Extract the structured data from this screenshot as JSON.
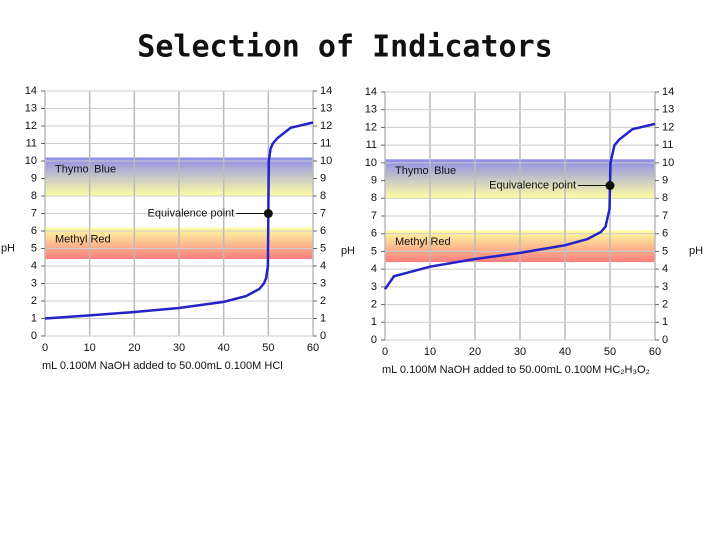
{
  "title": "Selection of Indicators",
  "chart_data": [
    {
      "type": "line",
      "color": "#2323c8",
      "x": [
        0,
        10,
        20,
        30,
        40,
        45,
        48,
        49,
        49.5,
        49.9,
        50,
        50.1,
        50.5,
        51,
        52,
        55,
        60
      ],
      "values": [
        1.0,
        1.18,
        1.37,
        1.6,
        1.95,
        2.28,
        2.69,
        3.0,
        3.3,
        4.0,
        7.0,
        10.0,
        10.7,
        11.0,
        11.3,
        11.9,
        12.2
      ],
      "xlim": [
        0,
        60
      ],
      "ylim": [
        0,
        14
      ],
      "xticks": [
        0,
        10,
        20,
        30,
        40,
        50,
        60
      ],
      "yticks": [
        0,
        1,
        2,
        3,
        4,
        5,
        6,
        7,
        8,
        9,
        10,
        11,
        12,
        13,
        14
      ],
      "ylabel": "pH",
      "xlabel": "mL 0.100M NaOH added to 50.00mL 0.100M HCl",
      "bands": [
        {
          "name": "Thymol Blue",
          "range": [
            8,
            10.2
          ],
          "colors": [
            "#ffff99",
            "#7f80e6"
          ]
        },
        {
          "name": "Methyl Red",
          "range": [
            4.4,
            6.2
          ],
          "colors": [
            "#f86f6f",
            "#ffff99"
          ]
        }
      ],
      "annotation": {
        "label": "Equivalence point",
        "x": 50,
        "y": 7
      },
      "grid": true
    },
    {
      "type": "line",
      "color": "#2323c8",
      "x": [
        0,
        2,
        5,
        10,
        20,
        25,
        30,
        40,
        45,
        48,
        49,
        49.9,
        50,
        50.1,
        51,
        52,
        55,
        60
      ],
      "values": [
        2.87,
        3.6,
        3.8,
        4.14,
        4.57,
        4.74,
        4.92,
        5.35,
        5.7,
        6.1,
        6.4,
        7.4,
        8.72,
        10.0,
        11.0,
        11.3,
        11.9,
        12.2
      ],
      "xlim": [
        0,
        60
      ],
      "ylim": [
        0,
        14
      ],
      "xticks": [
        0,
        10,
        20,
        30,
        40,
        50,
        60
      ],
      "yticks": [
        0,
        1,
        2,
        3,
        4,
        5,
        6,
        7,
        8,
        9,
        10,
        11,
        12,
        13,
        14
      ],
      "ylabel": "pH",
      "xlabel": "mL 0.100M NaOH added to 50.00mL 0.100M HC₂H₃O₂",
      "bands": [
        {
          "name": "Thymol Blue",
          "range": [
            8,
            10.2
          ],
          "colors": [
            "#ffff99",
            "#7f80e6"
          ]
        },
        {
          "name": "Methyl Red",
          "range": [
            4.4,
            6.2
          ],
          "colors": [
            "#f86f6f",
            "#ffff99"
          ]
        }
      ],
      "annotation": {
        "label": "Equivalence point",
        "x": 50,
        "y": 8.72
      },
      "grid": true
    }
  ]
}
